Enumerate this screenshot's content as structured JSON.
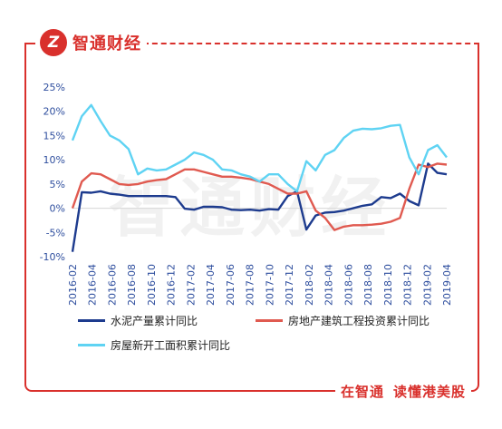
{
  "brand": {
    "logo_text": "Z",
    "name": "智通财经"
  },
  "slogan": {
    "part1": "在智通",
    "part2": "读懂港美股"
  },
  "watermark": "智通财经",
  "colors": {
    "brand": "#d9302c",
    "cement": "#1d3b8e",
    "real_estate": "#e05a50",
    "new_construction": "#5fd3f3",
    "axis_text": "#2e4e9e"
  },
  "chart_data": {
    "type": "line",
    "title": "",
    "xlabel": "",
    "ylabel": "",
    "ylim": [
      -10,
      25
    ],
    "yticks": [
      -10,
      -5,
      0,
      5,
      10,
      15,
      20,
      25
    ],
    "ytick_labels": [
      "-10%",
      "-5%",
      "0%",
      "5%",
      "10%",
      "15%",
      "20%",
      "25%"
    ],
    "x_labels": [
      "2016-02",
      "2016-04",
      "2016-06",
      "2016-08",
      "2016-10",
      "2016-12",
      "2017-02",
      "2017-04",
      "2017-06",
      "2017-08",
      "2017-10",
      "2017-12",
      "2018-02",
      "2018-04",
      "2018-06",
      "2018-08",
      "2018-10",
      "2018-12",
      "2019-02",
      "2019-04"
    ],
    "legend_placement": "bottom",
    "grid": false,
    "series": [
      {
        "name": "水泥产量累计同比",
        "color_key": "cement",
        "values": [
          -9.0,
          3.3,
          3.2,
          3.5,
          3.0,
          2.8,
          2.5,
          2.5,
          2.5,
          2.5,
          2.5,
          2.3,
          -0.1,
          -0.3,
          0.3,
          0.3,
          0.2,
          -0.3,
          -0.4,
          -0.3,
          -0.5,
          -0.2,
          -0.3,
          2.5,
          3.5,
          -4.4,
          -1.5,
          -0.9,
          -0.8,
          -0.5,
          0.0,
          0.5,
          0.8,
          2.3,
          2.1,
          3.0,
          1.5,
          0.6,
          9.2,
          7.3,
          7.0
        ]
      },
      {
        "name": "房地产建筑工程投资累计同比",
        "color_key": "real_estate",
        "values": [
          0.0,
          5.5,
          7.2,
          7.0,
          6.0,
          5.0,
          4.8,
          5.0,
          5.5,
          5.8,
          6.0,
          7.0,
          8.0,
          8.0,
          7.5,
          7.0,
          6.5,
          6.5,
          6.3,
          6.0,
          5.5,
          5.0,
          4.0,
          3.0,
          3.0,
          3.5,
          -0.5,
          -2.0,
          -4.5,
          -3.8,
          -3.5,
          -3.5,
          -3.4,
          -3.2,
          -2.8,
          -2.0,
          4.0,
          9.0,
          8.5,
          9.2,
          9.0
        ]
      },
      {
        "name": "房屋新开工面积累计同比",
        "color_key": "new_construction",
        "values": [
          14.0,
          19.0,
          21.3,
          18.0,
          15.0,
          14.0,
          12.2,
          7.0,
          8.2,
          7.8,
          8.0,
          9.0,
          10.0,
          11.5,
          11.0,
          10.0,
          8.0,
          7.8,
          7.0,
          6.5,
          5.5,
          7.0,
          7.0,
          5.0,
          3.5,
          9.7,
          7.8,
          11.0,
          12.0,
          14.5,
          16.0,
          16.4,
          16.3,
          16.5,
          17.0,
          17.2,
          10.5,
          7.0,
          12.0,
          13.0,
          10.5
        ]
      }
    ]
  }
}
